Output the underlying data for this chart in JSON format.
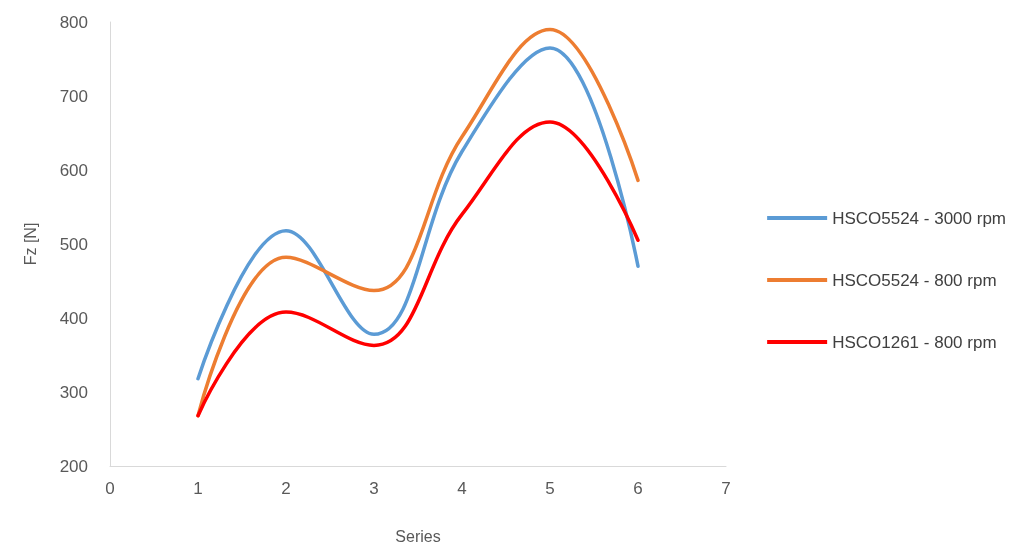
{
  "chart_data": {
    "type": "line",
    "xlabel": "Series",
    "ylabel": "Fz [N]",
    "x": [
      1,
      2,
      3,
      4,
      5,
      6
    ],
    "series": [
      {
        "name": "HSCO5524 - 3000 rpm",
        "color": "#5b9bd5",
        "values": [
          318,
          518,
          378,
          625,
          765,
          470
        ]
      },
      {
        "name": "HSCO5524 - 800 rpm",
        "color": "#ed7d31",
        "values": [
          268,
          482,
          437,
          645,
          790,
          586
        ]
      },
      {
        "name": "HSCO1261 - 800 rpm",
        "color": "#ff0000",
        "values": [
          268,
          408,
          363,
          540,
          665,
          505
        ]
      }
    ],
    "xlim": [
      0,
      7
    ],
    "xticks": [
      0,
      1,
      2,
      3,
      4,
      5,
      6,
      7
    ],
    "ylim": [
      200,
      800
    ],
    "yticks": [
      200,
      300,
      400,
      500,
      600,
      700,
      800
    ],
    "grid": false,
    "legend": "right",
    "marker": "none",
    "line_style": "solid"
  }
}
